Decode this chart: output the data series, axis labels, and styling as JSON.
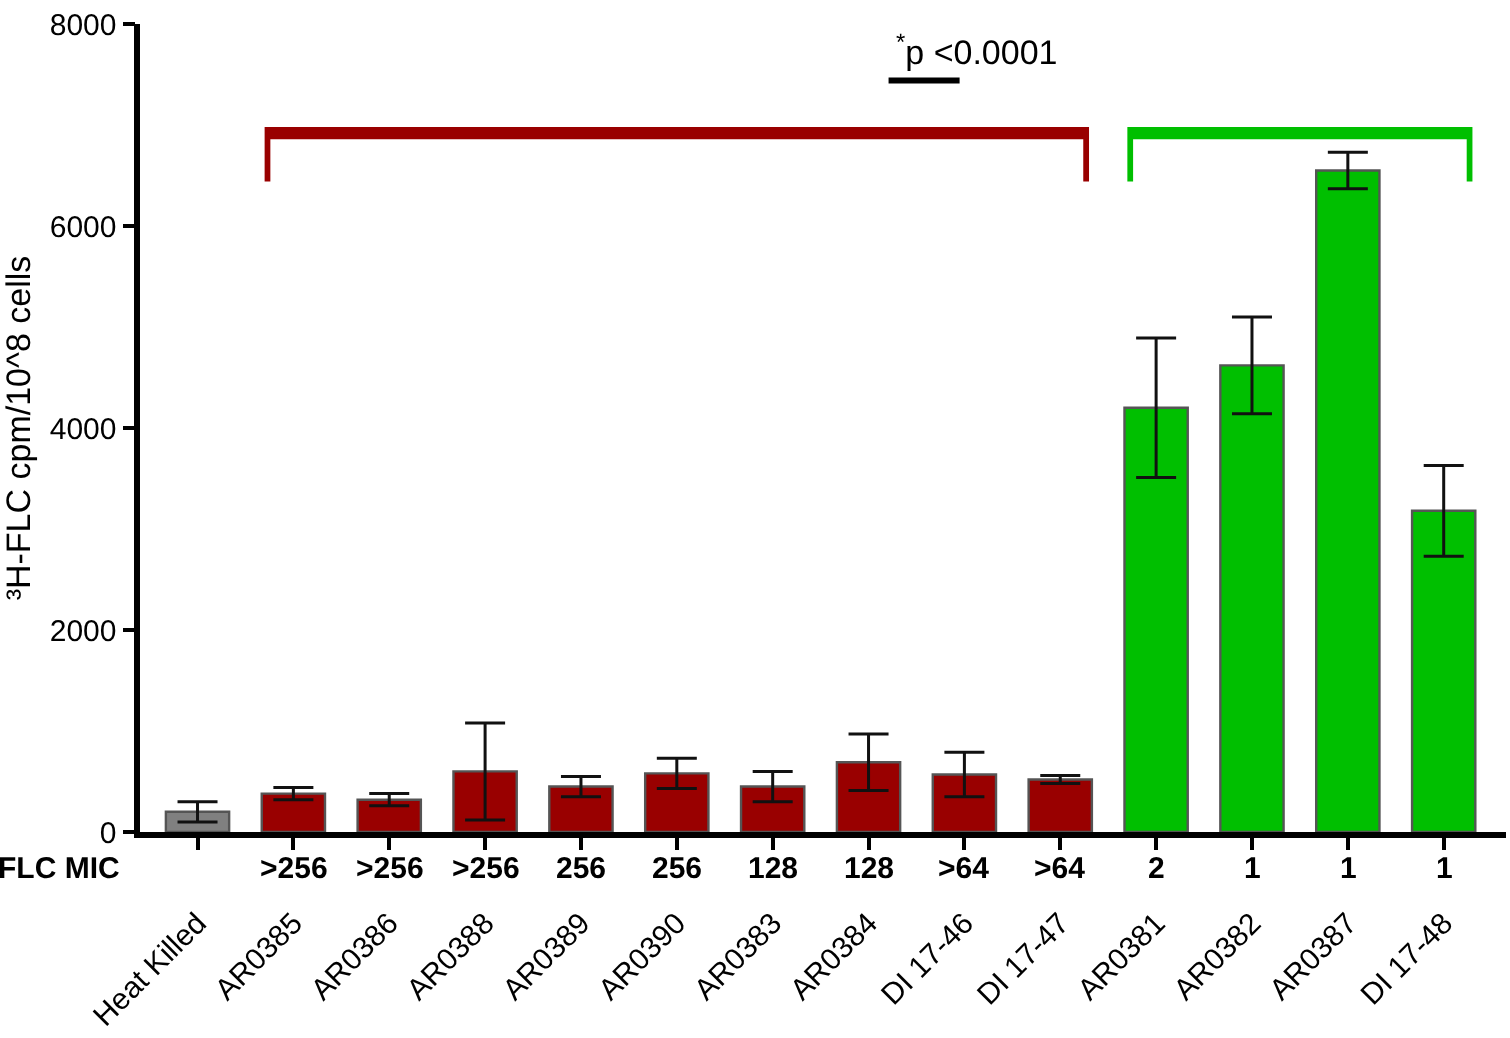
{
  "chart_data": {
    "type": "bar",
    "ylabel": "³H-FLC cpm/10^8 cells",
    "categories": [
      "Heat Killed",
      "AR0385",
      "AR0386",
      "AR0388",
      "AR0389",
      "AR0390",
      "AR0383",
      "AR0384",
      "DI 17-46",
      "DI 17-47",
      "AR0381",
      "AR0382",
      "AR0387",
      "DI 17-48"
    ],
    "values": [
      200,
      380,
      320,
      600,
      450,
      580,
      450,
      690,
      570,
      520,
      4200,
      4620,
      6550,
      3180
    ],
    "errors": [
      100,
      60,
      60,
      480,
      100,
      150,
      150,
      280,
      220,
      40,
      690,
      480,
      180,
      450
    ],
    "colors": [
      "#808080",
      "#990000",
      "#990000",
      "#990000",
      "#990000",
      "#990000",
      "#990000",
      "#990000",
      "#990000",
      "#990000",
      "#00bf00",
      "#00bf00",
      "#00bf00",
      "#00bf00"
    ],
    "ylim": [
      0,
      8000
    ],
    "yticks": [
      0,
      2000,
      4000,
      6000,
      8000
    ],
    "annotations": [
      "$^{*}$p <0.0001",
      "FLC MIC",
      ">256",
      ">256",
      ">256",
      "256",
      "256",
      "128",
      "128",
      ">64",
      ">64",
      "2",
      "1",
      "1",
      "1"
    ]
  }
}
